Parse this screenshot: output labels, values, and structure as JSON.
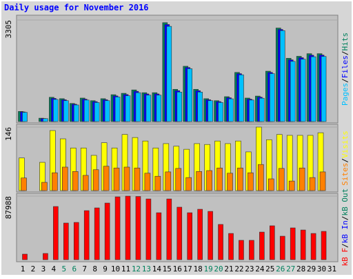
{
  "chart_data": [
    {
      "type": "bar",
      "title": "Daily usage for November 2016",
      "separator": "/",
      "ylim": [
        0,
        3305
      ],
      "yticks": [
        3305
      ],
      "series": [
        {
          "name": "Pages",
          "color": "#00c0ff",
          "values": [
            300,
            0,
            95,
            720,
            680,
            540,
            700,
            620,
            680,
            800,
            840,
            940,
            860,
            860,
            3100,
            960,
            1720,
            960,
            680,
            620,
            740,
            1520,
            700,
            760,
            1560,
            2960,
            1960,
            2030,
            2110,
            2120,
            0
          ]
        },
        {
          "name": "Files",
          "color": "#0000ff",
          "values": [
            315,
            0,
            100,
            755,
            710,
            565,
            730,
            650,
            710,
            835,
            880,
            985,
            900,
            900,
            3160,
            1005,
            1760,
            1005,
            710,
            650,
            775,
            1560,
            730,
            795,
            1600,
            3000,
            2010,
            2080,
            2160,
            2165,
            0
          ]
        },
        {
          "name": "Hits",
          "color": "#00805c",
          "values": [
            330,
            0,
            110,
            790,
            745,
            590,
            765,
            680,
            745,
            875,
            920,
            1030,
            940,
            940,
            3220,
            1050,
            1800,
            1050,
            745,
            680,
            810,
            1600,
            765,
            830,
            1640,
            3045,
            2060,
            2125,
            2210,
            2210,
            0
          ]
        }
      ]
    },
    {
      "type": "bar",
      "ylim": [
        0,
        146
      ],
      "yticks": [
        146
      ],
      "series": [
        {
          "name": "Sites",
          "color": "#ff8000",
          "values": [
            29,
            0,
            19,
            41,
            54,
            44,
            35,
            48,
            56,
            52,
            54,
            52,
            40,
            33,
            43,
            51,
            30,
            44,
            46,
            52,
            40,
            52,
            41,
            60,
            27,
            51,
            22,
            52,
            30,
            43,
            0
          ]
        },
        {
          "name": "Visits",
          "color": "#ffff00",
          "values": [
            75,
            0,
            65,
            138,
            119,
            98,
            98,
            81,
            110,
            98,
            129,
            122,
            114,
            98,
            108,
            102,
            95,
            108,
            106,
            114,
            108,
            114,
            89,
            146,
            117,
            129,
            127,
            127,
            127,
            133,
            0
          ]
        }
      ]
    },
    {
      "type": "bar",
      "ylim": [
        0,
        87988
      ],
      "yticks": [
        87988
      ],
      "categories": [
        "1",
        "2",
        "3",
        "4",
        "5",
        "6",
        "7",
        "8",
        "9",
        "10",
        "11",
        "12",
        "13",
        "14",
        "15",
        "16",
        "17",
        "18",
        "19",
        "20",
        "21",
        "22",
        "23",
        "24",
        "25",
        "26",
        "27",
        "28",
        "29",
        "30",
        "31"
      ],
      "category_colors": [
        "#000000",
        "#000000",
        "#000000",
        "#000000",
        "#00805c",
        "#00805c",
        "#000000",
        "#000000",
        "#000000",
        "#000000",
        "#000000",
        "#00805c",
        "#00805c",
        "#000000",
        "#000000",
        "#000000",
        "#000000",
        "#000000",
        "#00805c",
        "#00805c",
        "#000000",
        "#000000",
        "#000000",
        "#000000",
        "#000000",
        "#00805c",
        "#00805c",
        "#000000",
        "#000000",
        "#000000",
        "#000000"
      ],
      "series": [
        {
          "name": "kB F",
          "color": "#ff0000",
          "values": [
            7650,
            0,
            8600,
            73600,
            50700,
            51600,
            67900,
            71700,
            78400,
            87000,
            87988,
            87500,
            84100,
            65000,
            84100,
            72700,
            65000,
            69800,
            66900,
            48800,
            36300,
            26800,
            26800,
            38200,
            46900,
            32500,
            44000,
            41100,
            36300,
            39200,
            0
          ]
        },
        {
          "name": "kB In",
          "color": "#0000ff",
          "values": [
            0,
            0,
            0,
            0,
            0,
            0,
            0,
            0,
            0,
            0,
            0,
            0,
            0,
            0,
            0,
            0,
            0,
            0,
            0,
            0,
            0,
            0,
            0,
            0,
            0,
            0,
            0,
            0,
            0,
            0,
            0
          ]
        },
        {
          "name": "kB Out",
          "color": "#00805c",
          "values": [
            0,
            0,
            0,
            0,
            0,
            0,
            0,
            0,
            0,
            0,
            0,
            0,
            0,
            0,
            0,
            0,
            0,
            0,
            0,
            0,
            0,
            0,
            0,
            0,
            0,
            0,
            0,
            0,
            0,
            0,
            0
          ]
        }
      ]
    }
  ]
}
